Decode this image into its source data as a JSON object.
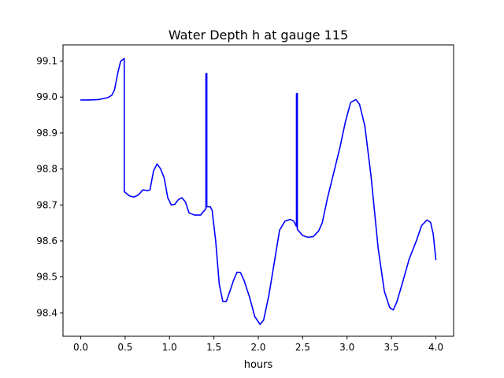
{
  "chart_data": {
    "type": "line",
    "title": "Water Depth h at gauge 115",
    "xlabel": "hours",
    "ylabel": "",
    "xlim": [
      -0.2,
      4.2
    ],
    "ylim": [
      98.335,
      99.145
    ],
    "x_ticks": [
      0.0,
      0.5,
      1.0,
      1.5,
      2.0,
      2.5,
      3.0,
      3.5,
      4.0
    ],
    "x_tick_labels": [
      "0.0",
      "0.5",
      "1.0",
      "1.5",
      "2.0",
      "2.5",
      "3.0",
      "3.5",
      "4.0"
    ],
    "y_ticks": [
      98.4,
      98.5,
      98.6,
      98.7,
      98.8,
      98.9,
      99.0,
      99.1
    ],
    "y_tick_labels": [
      "98.4",
      "98.5",
      "98.6",
      "98.7",
      "98.8",
      "98.9",
      "99.0",
      "99.1"
    ],
    "grid": false,
    "series": [
      {
        "color": "#0000ff",
        "points": [
          [
            0.0,
            98.992
          ],
          [
            0.1,
            98.992
          ],
          [
            0.2,
            98.993
          ],
          [
            0.3,
            98.998
          ],
          [
            0.35,
            99.005
          ],
          [
            0.38,
            99.02
          ],
          [
            0.42,
            99.07
          ],
          [
            0.45,
            99.1
          ],
          [
            0.49,
            99.107
          ],
          [
            0.49,
            98.737
          ],
          [
            0.55,
            98.725
          ],
          [
            0.6,
            98.722
          ],
          [
            0.65,
            98.728
          ],
          [
            0.7,
            98.742
          ],
          [
            0.75,
            98.74
          ],
          [
            0.78,
            98.742
          ],
          [
            0.82,
            98.795
          ],
          [
            0.86,
            98.814
          ],
          [
            0.9,
            98.8
          ],
          [
            0.94,
            98.775
          ],
          [
            0.98,
            98.72
          ],
          [
            1.02,
            98.7
          ],
          [
            1.06,
            98.702
          ],
          [
            1.1,
            98.715
          ],
          [
            1.14,
            98.72
          ],
          [
            1.18,
            98.708
          ],
          [
            1.22,
            98.678
          ],
          [
            1.28,
            98.672
          ],
          [
            1.35,
            98.672
          ],
          [
            1.41,
            98.69
          ],
          [
            1.41,
            99.065
          ],
          [
            1.42,
            99.065
          ],
          [
            1.42,
            98.695
          ],
          [
            1.46,
            98.695
          ],
          [
            1.48,
            98.685
          ],
          [
            1.52,
            98.6
          ],
          [
            1.56,
            98.48
          ],
          [
            1.6,
            98.432
          ],
          [
            1.64,
            98.432
          ],
          [
            1.68,
            98.46
          ],
          [
            1.72,
            98.49
          ],
          [
            1.76,
            98.513
          ],
          [
            1.8,
            98.512
          ],
          [
            1.84,
            98.49
          ],
          [
            1.9,
            98.445
          ],
          [
            1.96,
            98.39
          ],
          [
            2.02,
            98.368
          ],
          [
            2.06,
            98.38
          ],
          [
            2.12,
            98.45
          ],
          [
            2.18,
            98.54
          ],
          [
            2.24,
            98.63
          ],
          [
            2.3,
            98.655
          ],
          [
            2.36,
            98.66
          ],
          [
            2.4,
            98.655
          ],
          [
            2.42,
            98.645
          ],
          [
            2.43,
            98.64
          ],
          [
            2.43,
            99.01
          ],
          [
            2.44,
            99.01
          ],
          [
            2.44,
            98.632
          ],
          [
            2.5,
            98.615
          ],
          [
            2.56,
            98.61
          ],
          [
            2.62,
            98.612
          ],
          [
            2.68,
            98.628
          ],
          [
            2.72,
            98.65
          ],
          [
            2.78,
            98.72
          ],
          [
            2.86,
            98.8
          ],
          [
            2.92,
            98.86
          ],
          [
            2.98,
            98.93
          ],
          [
            3.04,
            98.985
          ],
          [
            3.1,
            98.993
          ],
          [
            3.14,
            98.98
          ],
          [
            3.2,
            98.92
          ],
          [
            3.27,
            98.78
          ],
          [
            3.35,
            98.58
          ],
          [
            3.42,
            98.46
          ],
          [
            3.48,
            98.415
          ],
          [
            3.52,
            98.408
          ],
          [
            3.56,
            98.43
          ],
          [
            3.62,
            98.48
          ],
          [
            3.7,
            98.55
          ],
          [
            3.78,
            98.6
          ],
          [
            3.84,
            98.643
          ],
          [
            3.9,
            98.658
          ],
          [
            3.94,
            98.652
          ],
          [
            3.97,
            98.62
          ],
          [
            4.0,
            98.548
          ]
        ]
      }
    ]
  }
}
